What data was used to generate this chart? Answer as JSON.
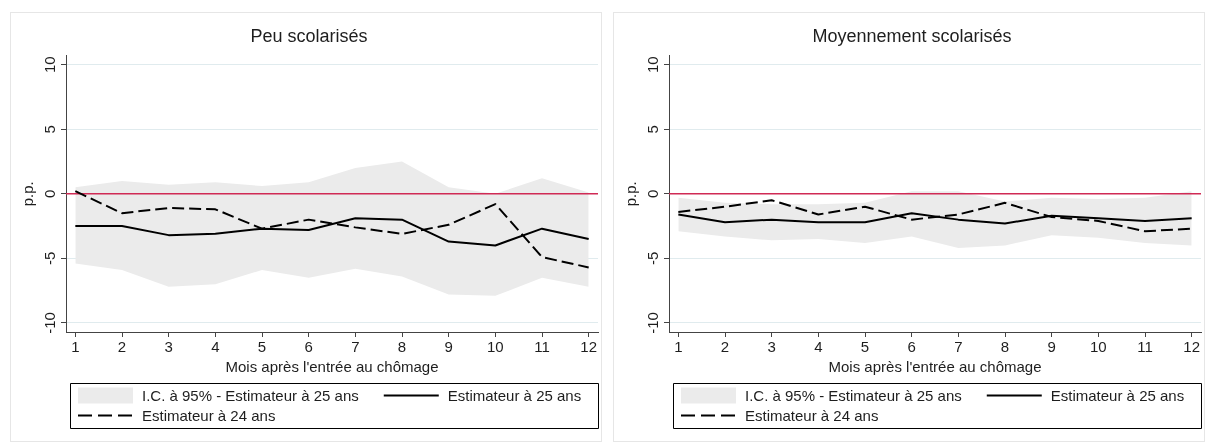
{
  "chart_data": [
    {
      "type": "line",
      "title": "Peu scolarisés",
      "xlabel": "Mois après l'entrée au chômage",
      "ylabel": "p.p.",
      "x": [
        1,
        2,
        3,
        4,
        5,
        6,
        7,
        8,
        9,
        10,
        11,
        12
      ],
      "xlim": [
        0.8,
        12.2
      ],
      "xticks": [
        1,
        2,
        3,
        4,
        5,
        6,
        7,
        8,
        9,
        10,
        11,
        12
      ],
      "ylim": [
        -10.7,
        10.7
      ],
      "yticks": [
        -10,
        -5,
        0,
        5,
        10
      ],
      "grid": "y",
      "legend": "bottom",
      "ref_lines": [
        {
          "axis": "y",
          "value": 0,
          "color": "#d02a55"
        }
      ],
      "series": [
        {
          "name": "I.C. à 95% - Estimateur à 25 ans",
          "type": "area",
          "color": "#ebebeb",
          "values": [
            null,
            null,
            null,
            null,
            null,
            null,
            null,
            null,
            null,
            null,
            null,
            null
          ],
          "lower": [
            -5.4,
            -5.9,
            -7.2,
            -7.0,
            -5.9,
            -6.5,
            -5.8,
            -6.4,
            -7.8,
            -7.9,
            -6.5,
            -7.2
          ],
          "upper": [
            0.5,
            1.0,
            0.7,
            0.9,
            0.6,
            0.9,
            2.0,
            2.5,
            0.5,
            0.0,
            1.2,
            0.1
          ]
        },
        {
          "name": "Estimateur à 25 ans",
          "color": "#000000",
          "values": [
            -2.5,
            -2.5,
            -3.2,
            -3.1,
            -2.7,
            -2.8,
            -1.9,
            -2.0,
            -3.7,
            -4.0,
            -2.7,
            -3.5
          ]
        },
        {
          "name": "Estimateur à 24 ans",
          "color": "#000000",
          "line_style": "dashed",
          "values": [
            0.2,
            -1.5,
            -1.1,
            -1.2,
            -2.7,
            -2.0,
            -2.6,
            -3.1,
            -2.4,
            -0.8,
            -4.9,
            -5.7
          ]
        }
      ]
    },
    {
      "type": "line",
      "title": "Moyennement scolarisés",
      "xlabel": "Mois après l'entrée au chômage",
      "ylabel": "p.p.",
      "x": [
        1,
        2,
        3,
        4,
        5,
        6,
        7,
        8,
        9,
        10,
        11,
        12
      ],
      "xlim": [
        0.8,
        12.2
      ],
      "xticks": [
        1,
        2,
        3,
        4,
        5,
        6,
        7,
        8,
        9,
        10,
        11,
        12
      ],
      "ylim": [
        -10.7,
        10.7
      ],
      "yticks": [
        -10,
        -5,
        0,
        5,
        10
      ],
      "grid": "y",
      "legend": "bottom",
      "ref_lines": [
        {
          "axis": "y",
          "value": 0,
          "color": "#d02a55"
        }
      ],
      "series": [
        {
          "name": "I.C. à 95% - Estimateur à 25 ans",
          "type": "area",
          "color": "#ebebeb",
          "values": [
            null,
            null,
            null,
            null,
            null,
            null,
            null,
            null,
            null,
            null,
            null,
            null
          ],
          "lower": [
            -2.9,
            -3.3,
            -3.6,
            -3.5,
            -3.8,
            -3.3,
            -4.2,
            -4.0,
            -3.2,
            -3.4,
            -3.8,
            -4.0
          ],
          "upper": [
            -0.3,
            -0.7,
            -0.8,
            -0.8,
            -0.7,
            0.2,
            0.2,
            -0.6,
            -0.3,
            -0.4,
            -0.3,
            0.2
          ]
        },
        {
          "name": "Estimateur à 25 ans",
          "color": "#000000",
          "values": [
            -1.6,
            -2.2,
            -2.0,
            -2.2,
            -2.2,
            -1.5,
            -2.0,
            -2.3,
            -1.7,
            -1.9,
            -2.1,
            -1.9
          ]
        },
        {
          "name": "Estimateur à 24 ans",
          "color": "#000000",
          "line_style": "dashed",
          "values": [
            -1.4,
            -1.0,
            -0.5,
            -1.6,
            -1.0,
            -2.0,
            -1.6,
            -0.7,
            -1.8,
            -2.1,
            -2.9,
            -2.7
          ]
        }
      ]
    }
  ]
}
